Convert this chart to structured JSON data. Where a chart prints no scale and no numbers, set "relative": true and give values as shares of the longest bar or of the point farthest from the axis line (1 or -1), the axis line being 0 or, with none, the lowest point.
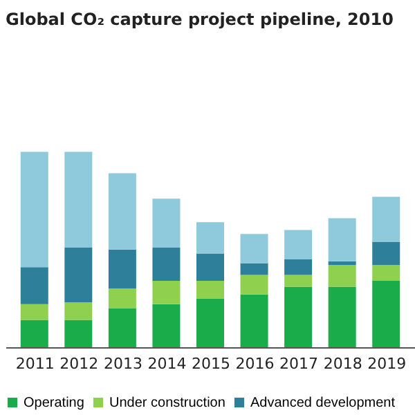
{
  "chart_data": {
    "type": "bar",
    "title": "Global CO₂ capture project pipeline, 2010",
    "relative": true,
    "stacked": true,
    "legend": "bottom",
    "categories": [
      "2011",
      "2012",
      "2013",
      "2014",
      "2015",
      "2016",
      "2017",
      "2018",
      "2019"
    ],
    "series": [
      {
        "name": "Operating",
        "color": "#1aab4a",
        "values": [
          0.14,
          0.14,
          0.2,
          0.22,
          0.25,
          0.27,
          0.31,
          0.31,
          0.34
        ]
      },
      {
        "name": "Under construction",
        "color": "#8fd14f",
        "values": [
          0.08,
          0.09,
          0.1,
          0.12,
          0.09,
          0.1,
          0.06,
          0.11,
          0.08
        ]
      },
      {
        "name": "Advanced development",
        "color": "#2e7f9a",
        "values": [
          0.19,
          0.28,
          0.2,
          0.17,
          0.14,
          0.06,
          0.08,
          0.02,
          0.12
        ]
      },
      {
        "color": "#8fc9dc",
        "values": [
          0.59,
          0.49,
          0.39,
          0.25,
          0.16,
          0.15,
          0.15,
          0.22,
          0.23
        ]
      }
    ]
  }
}
